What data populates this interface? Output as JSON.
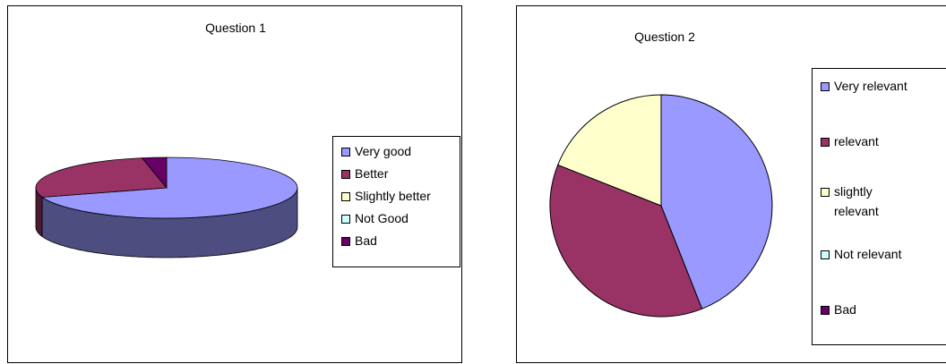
{
  "charts": [
    {
      "title": "Question 1",
      "legend": [
        {
          "label": "Very good",
          "color": "#9999FF"
        },
        {
          "label": "Better",
          "color": "#993366"
        },
        {
          "label": "Slightly better",
          "color": "#FFFFCC"
        },
        {
          "label": "Not Good",
          "color": "#CCFFFF"
        },
        {
          "label": "Bad",
          "color": "#660066"
        }
      ]
    },
    {
      "title": "Question 2",
      "legend": [
        {
          "label": "Very relevant",
          "color": "#9999FF"
        },
        {
          "label": "relevant",
          "color": "#993366"
        },
        {
          "label": "slightly relevant",
          "color": "#FFFFCC"
        },
        {
          "label": "Not relevant",
          "color": "#CCFFFF"
        },
        {
          "label": "Bad",
          "color": "#660066"
        }
      ]
    }
  ],
  "chart_data": [
    {
      "type": "pie",
      "style": "3d",
      "title": "Question 1",
      "categories": [
        "Very good",
        "Better",
        "Slightly better",
        "Not Good",
        "Bad"
      ],
      "values": [
        70,
        27,
        0,
        0,
        3
      ],
      "colors": [
        "#9999FF",
        "#993366",
        "#FFFFCC",
        "#CCFFFF",
        "#660066"
      ],
      "legend_position": "right"
    },
    {
      "type": "pie",
      "title": "Question 2",
      "categories": [
        "Very relevant",
        "relevant",
        "slightly relevant",
        "Not relevant",
        "Bad"
      ],
      "values": [
        44,
        37,
        19,
        0,
        0
      ],
      "colors": [
        "#9999FF",
        "#993366",
        "#FFFFCC",
        "#CCFFFF",
        "#660066"
      ],
      "legend_position": "right"
    }
  ]
}
